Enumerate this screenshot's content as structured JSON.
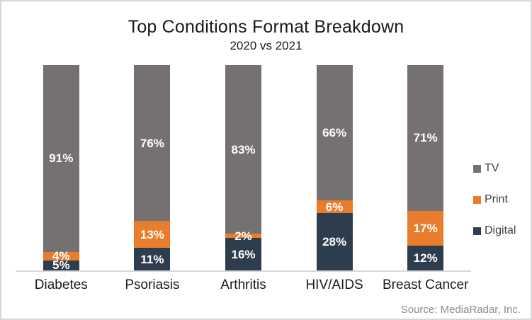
{
  "chart_data": {
    "type": "bar",
    "variant": "100%-stacked-column",
    "title": "Top Conditions Format Breakdown",
    "subtitle": "2020 vs 2021",
    "categories": [
      "Diabetes",
      "Psoriasis",
      "Arthritis",
      "HIV/AIDS",
      "Breast Cancer"
    ],
    "series": [
      {
        "name": "Digital",
        "color": "#2e3d4d",
        "values": [
          5,
          11,
          16,
          28,
          12
        ]
      },
      {
        "name": "Print",
        "color": "#e87d2e",
        "values": [
          4,
          13,
          2,
          6,
          17
        ]
      },
      {
        "name": "TV",
        "color": "#767171",
        "values": [
          91,
          76,
          83,
          66,
          71
        ]
      }
    ],
    "value_suffix": "%",
    "legend": [
      "TV",
      "Print",
      "Digital"
    ],
    "legend_position": "right",
    "grid": false,
    "data_label_color": "#ffffff",
    "source": "Source: MediaRadar, Inc."
  }
}
